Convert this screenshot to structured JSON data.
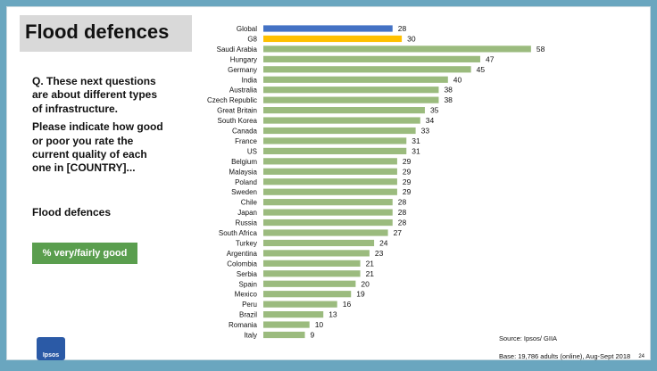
{
  "title": "Flood defences",
  "question": [
    "Q. These next questions are about different types of infrastructure.",
    "Please indicate how good or poor you rate the current quality of each one in [COUNTRY]..."
  ],
  "topic": "Flood defences",
  "measure": "% very/fairly good",
  "logo_text": "Ipsos",
  "source": "Source: Ipsos/ GIIA",
  "base": "Base: 19,786 adults (online), Aug-Sept 2018",
  "page_number": "24",
  "colors": {
    "global": "#4472c4",
    "g8": "#ffc000",
    "country": "#9bbb7e"
  },
  "chart_data": {
    "type": "bar",
    "orientation": "horizontal",
    "categories": [
      "Global",
      "G8",
      "Saudi Arabia",
      "Hungary",
      "Germany",
      "India",
      "Australia",
      "Czech Republic",
      "Great Britain",
      "South Korea",
      "Canada",
      "France",
      "US",
      "Belgium",
      "Malaysia",
      "Poland",
      "Sweden",
      "Chile",
      "Japan",
      "Russia",
      "South Africa",
      "Turkey",
      "Argentina",
      "Colombia",
      "Serbia",
      "Spain",
      "Mexico",
      "Peru",
      "Brazil",
      "Romania",
      "Italy"
    ],
    "values": [
      28,
      30,
      58,
      47,
      45,
      40,
      38,
      38,
      35,
      34,
      33,
      31,
      31,
      29,
      29,
      29,
      29,
      28,
      28,
      28,
      27,
      24,
      23,
      21,
      21,
      20,
      19,
      16,
      13,
      10,
      9
    ],
    "bar_colors": [
      "global",
      "g8",
      "country",
      "country",
      "country",
      "country",
      "country",
      "country",
      "country",
      "country",
      "country",
      "country",
      "country",
      "country",
      "country",
      "country",
      "country",
      "country",
      "country",
      "country",
      "country",
      "country",
      "country",
      "country",
      "country",
      "country",
      "country",
      "country",
      "country",
      "country",
      "country"
    ],
    "xlim": [
      0,
      60
    ],
    "grid": false,
    "legend": "none"
  }
}
